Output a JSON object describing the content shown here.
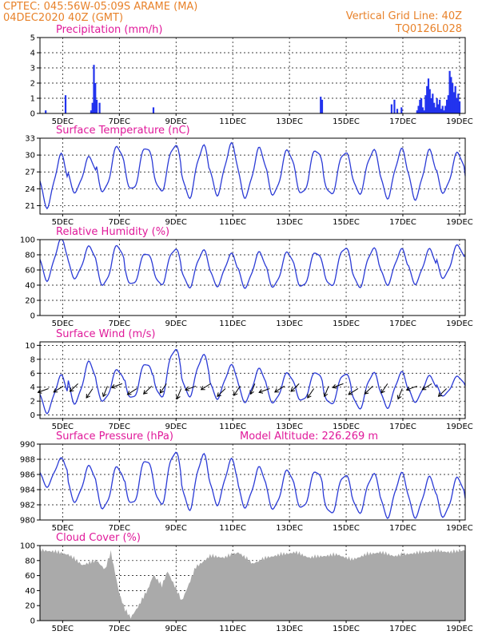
{
  "header": {
    "line1": "CPTEC:   045:56W-05:09S   ARAME (MA)",
    "line2": "04DEC2020 40Z (GMT)",
    "right1": "Vertical Grid Line: 40Z",
    "right2": "TQ0126L028"
  },
  "colors": {
    "line": "#2b3bd6",
    "bar": "#2233ee",
    "cloud": "#aaaaaa",
    "header": "#e8822a",
    "title": "#e0199a"
  },
  "chart_data": [
    {
      "type": "bar",
      "title": "Precipitation (mm/h)",
      "ylim": [
        0,
        5
      ],
      "yticks": [
        "0",
        "1",
        "2",
        "3",
        "4",
        "5"
      ],
      "xtick_labels": [
        "5DEC",
        "7DEC",
        "9DEC",
        "11DEC",
        "13DEC",
        "15DEC",
        "17DEC",
        "19DEC"
      ],
      "x_days_start": "04DEC2020",
      "x": [
        0.2,
        0.9,
        1.8,
        1.85,
        1.9,
        1.95,
        2.0,
        2.1,
        4.0,
        9.9,
        9.95,
        12.4,
        12.5,
        12.6,
        12.75,
        13.3,
        13.35,
        13.4,
        13.45,
        13.5,
        13.55,
        13.6,
        13.65,
        13.7,
        13.75,
        13.8,
        13.85,
        13.9,
        13.95,
        14.0,
        14.05,
        14.1,
        14.15,
        14.2,
        14.25,
        14.3,
        14.35,
        14.4,
        14.45,
        14.5,
        14.55,
        14.6,
        14.65,
        14.7,
        14.75,
        14.8
      ],
      "values": [
        0.2,
        1.2,
        0.2,
        0.7,
        3.2,
        2.0,
        0.9,
        0.7,
        0.4,
        1.1,
        0.9,
        0.6,
        0.9,
        0.3,
        0.4,
        0.2,
        0.5,
        0.9,
        1.0,
        0.4,
        0.2,
        1.2,
        1.8,
        2.3,
        1.6,
        1.0,
        1.3,
        0.7,
        0.4,
        1.0,
        0.6,
        0.9,
        0.3,
        0.5,
        0.2,
        0.5,
        0.9,
        1.2,
        2.8,
        2.4,
        2.0,
        1.4,
        1.8,
        1.0,
        1.3,
        0.8
      ]
    },
    {
      "type": "line",
      "title": "Surface Temperature (nC)",
      "ylim": [
        19.5,
        33
      ],
      "yticks": [
        "21",
        "24",
        "27",
        "30",
        "33"
      ],
      "xtick_labels": [
        "5DEC",
        "7DEC",
        "9DEC",
        "11DEC",
        "13DEC",
        "15DEC",
        "17DEC",
        "19DEC"
      ],
      "x_days_start": "04DEC2020",
      "daily_min": [
        21.0,
        23.5,
        23.5,
        23.7,
        23.5,
        22.6,
        23.2,
        22.7,
        23.0,
        23.0,
        22.9,
        23.2,
        22.6,
        22.4,
        23.4,
        24.5
      ],
      "daily_max": [
        29.8,
        29.5,
        31.5,
        31.5,
        31.8,
        31.5,
        31.7,
        31.0,
        30.8,
        31.0,
        30.6,
        30.8,
        30.8,
        30.6,
        30.3,
        27.8
      ]
    },
    {
      "type": "line",
      "title": "Relative Humidity (%)",
      "ylim": [
        0,
        100
      ],
      "yticks": [
        "0",
        "20",
        "40",
        "60",
        "80",
        "100"
      ],
      "xtick_labels": [
        "5DEC",
        "7DEC",
        "9DEC",
        "11DEC",
        "13DEC",
        "15DEC",
        "17DEC",
        "19DEC"
      ],
      "x_days_start": "04DEC2020",
      "daily_min": [
        48,
        50,
        40,
        40,
        40,
        38,
        40,
        38,
        38,
        37,
        38,
        38,
        42,
        43,
        50,
        63
      ],
      "daily_max": [
        100,
        90,
        92,
        83,
        88,
        85,
        80,
        82,
        83,
        84,
        90,
        88,
        86,
        86,
        92,
        92
      ]
    },
    {
      "type": "line",
      "title": "Surface Wind (m/s)",
      "ylim": [
        -0.5,
        10.5
      ],
      "yticks": [
        "0",
        "2",
        "4",
        "6",
        "8",
        "10"
      ],
      "xtick_labels": [
        "5DEC",
        "7DEC",
        "9DEC",
        "11DEC",
        "13DEC",
        "15DEC",
        "17DEC",
        "19DEC"
      ],
      "x_days_start": "04DEC2020",
      "daily_min": [
        0.5,
        1.8,
        2.0,
        2.3,
        2.5,
        2.8,
        2.5,
        2.0,
        1.8,
        2.0,
        1.5,
        1.0,
        1.2,
        2.0,
        2.8,
        3.0
      ],
      "daily_max": [
        5.5,
        7.5,
        6.5,
        7.5,
        9.5,
        8.5,
        7.0,
        6.5,
        6.0,
        6.2,
        6.0,
        6.0,
        6.0,
        5.5,
        5.5,
        5.2
      ]
    },
    {
      "type": "line",
      "title": "Surface Pressure (hPa)",
      "annotation": "Model Altitude: 226.269  m",
      "ylim": [
        980,
        990
      ],
      "yticks": [
        "980",
        "982",
        "984",
        "986",
        "988",
        "990"
      ],
      "xtick_labels": [
        "5DEC",
        "7DEC",
        "9DEC",
        "11DEC",
        "13DEC",
        "15DEC",
        "17DEC",
        "19DEC"
      ],
      "x_days_start": "04DEC2020",
      "daily_min": [
        984.5,
        982.5,
        981.5,
        982.0,
        982.0,
        981.5,
        982.2,
        981.8,
        981.5,
        981.5,
        980.8,
        981.0,
        980.5,
        980.5,
        980.5,
        980.3
      ],
      "daily_max": [
        988.0,
        987.0,
        987.0,
        988.0,
        989.0,
        988.5,
        987.8,
        986.8,
        986.5,
        986.5,
        986.0,
        986.0,
        986.0,
        985.5,
        985.5,
        985.0
      ]
    },
    {
      "type": "area",
      "title": "Cloud Cover (%)",
      "ylim": [
        0,
        100
      ],
      "yticks": [
        "0",
        "20",
        "40",
        "60",
        "80",
        "100"
      ],
      "xtick_labels": [
        "5DEC",
        "7DEC",
        "9DEC",
        "11DEC",
        "13DEC",
        "15DEC",
        "17DEC",
        "19DEC"
      ],
      "x_days_start": "04DEC2020",
      "x": [
        0,
        0.5,
        1.0,
        1.5,
        2.0,
        2.3,
        2.5,
        2.8,
        3.0,
        3.2,
        3.5,
        3.8,
        4.0,
        4.3,
        4.5,
        5.0,
        5.5,
        6.0,
        6.5,
        7.0,
        7.5,
        8.0,
        8.5,
        9.0,
        9.5,
        10.0,
        10.5,
        11.0,
        11.5,
        12.0,
        12.5,
        13.0,
        13.5,
        14.0,
        14.5,
        15.0
      ],
      "values": [
        98,
        96,
        92,
        78,
        84,
        72,
        95,
        40,
        18,
        8,
        25,
        45,
        65,
        50,
        70,
        30,
        75,
        90,
        88,
        95,
        80,
        88,
        92,
        95,
        88,
        90,
        92,
        85,
        92,
        95,
        90,
        93,
        95,
        97,
        95,
        98
      ]
    }
  ]
}
